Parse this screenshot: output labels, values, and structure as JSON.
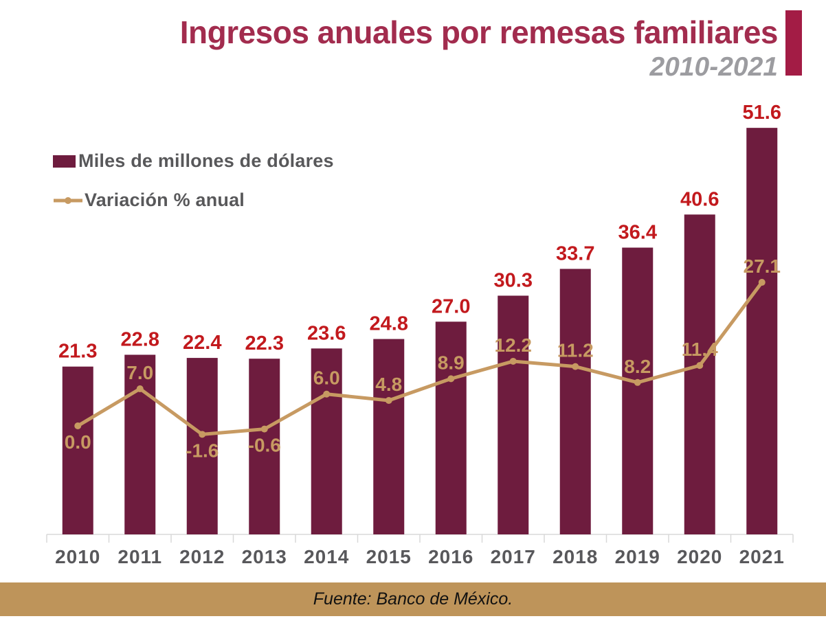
{
  "header": {
    "title": "Ingresos anuales por remesas familiares",
    "subtitle": "2010-2021",
    "title_color": "#A22C4E",
    "accent_bar_color": "#A31C45"
  },
  "legend": [
    {
      "label": "Miles de millones de dólares",
      "swatch": "bar-swatch",
      "color": "#6E1C3E"
    },
    {
      "label": "Variación % anual",
      "swatch": "line-swatch",
      "color": "#C79A62"
    }
  ],
  "footer": {
    "source": "Fuente: Banco de México.",
    "band_color": "#BE945A"
  },
  "chart_data": {
    "type": "bar",
    "subtype": "bar+line combo",
    "title": "Ingresos anuales por remesas familiares",
    "subtitle": "2010-2021",
    "xlabel": "",
    "ylabel": "",
    "grid": false,
    "legend_position": "top-left",
    "value_labels": true,
    "categories": [
      "2010",
      "2011",
      "2012",
      "2013",
      "2014",
      "2015",
      "2016",
      "2017",
      "2018",
      "2019",
      "2020",
      "2021"
    ],
    "series": [
      {
        "name": "Miles de millones de dólares",
        "type": "bar",
        "color": "#6E1C3E",
        "label_color": "#C2191D",
        "values": [
          21.3,
          22.8,
          22.4,
          22.3,
          23.6,
          24.8,
          27.0,
          30.3,
          33.7,
          36.4,
          40.6,
          51.6
        ]
      },
      {
        "name": "Variación % anual",
        "type": "line",
        "color": "#C79A62",
        "label_color": "#C79A62",
        "values": [
          0.0,
          7.0,
          -1.6,
          -0.6,
          6.0,
          4.8,
          8.9,
          12.2,
          11.2,
          8.2,
          11.4,
          27.1
        ],
        "label_positions": [
          "below",
          "above",
          "below",
          "below",
          "above",
          "above",
          "above",
          "above",
          "above",
          "above",
          "above",
          "above"
        ]
      }
    ],
    "axis_color": "#D8D8D8",
    "x_tick_label_color": "#58585B"
  }
}
